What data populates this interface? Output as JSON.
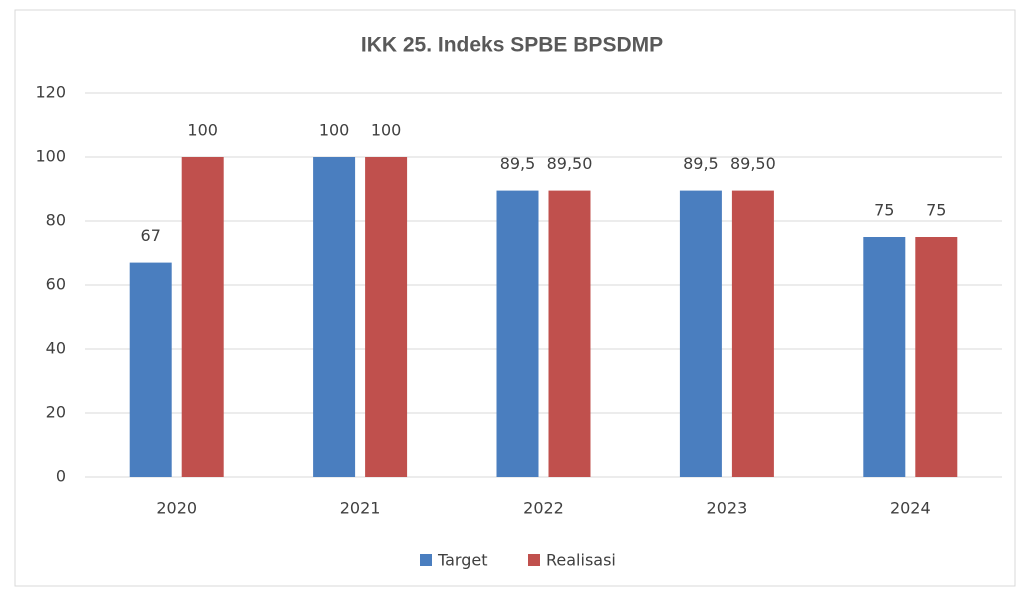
{
  "chart_data": {
    "type": "bar",
    "title": "IKK 25. Indeks SPBE BPSDMP",
    "categories": [
      "2020",
      "2021",
      "2022",
      "2023",
      "2024"
    ],
    "series": [
      {
        "name": "Target",
        "color": "#4a7ebf",
        "values": [
          67,
          100,
          89.5,
          89.5,
          75
        ],
        "value_labels": [
          "67",
          "100",
          "89,5",
          "89,5",
          "75"
        ]
      },
      {
        "name": "Realisasi",
        "color": "#c0504d",
        "values": [
          100,
          100,
          89.5,
          89.5,
          75
        ],
        "value_labels": [
          "100",
          "100",
          "89,50",
          "89,50",
          "75"
        ]
      }
    ],
    "ylim": [
      0,
      120
    ],
    "yticks": [
      0,
      20,
      40,
      60,
      80,
      100,
      120
    ],
    "grid": true,
    "legend": "bottom"
  }
}
